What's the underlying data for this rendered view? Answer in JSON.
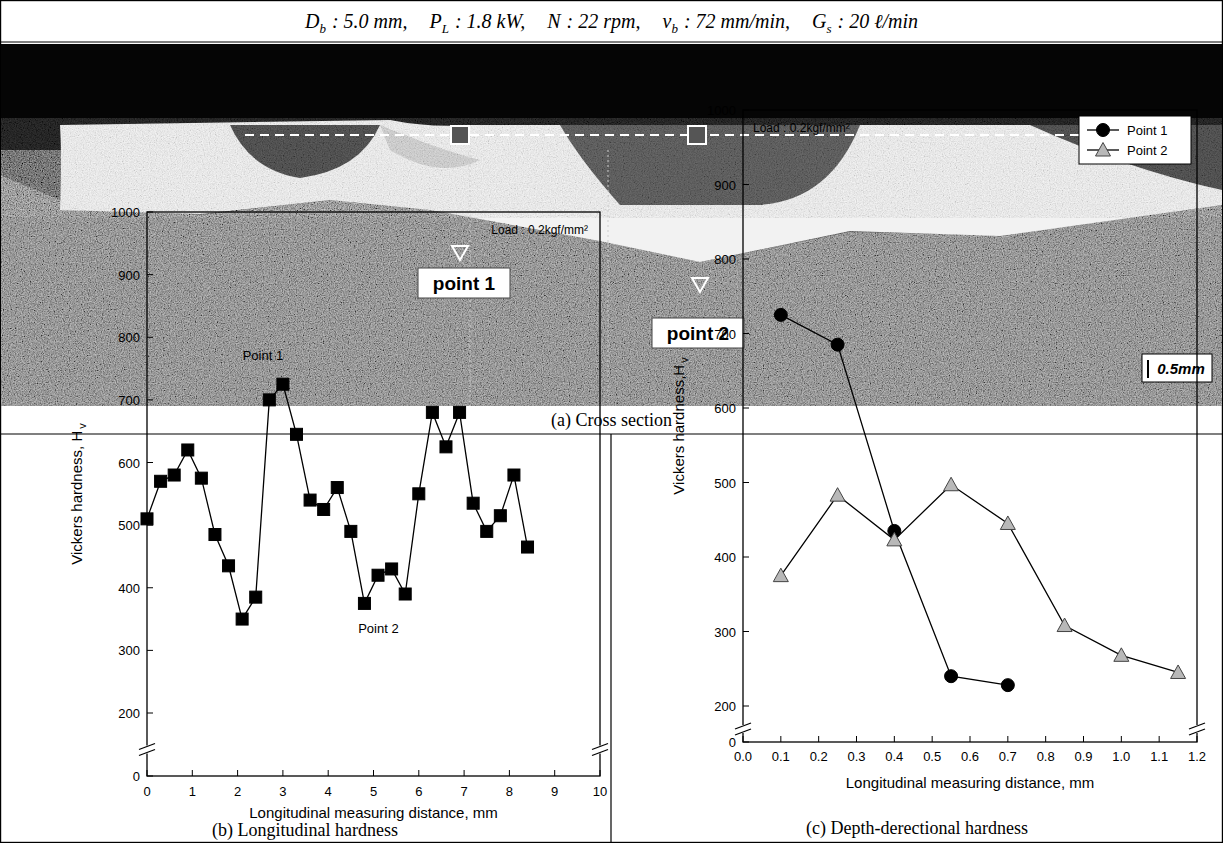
{
  "header": {
    "params": [
      {
        "symbol": "D",
        "sub": "b",
        "value": ": 5.0 mm,"
      },
      {
        "symbol": "P",
        "sub": "L",
        "value": ": 1.8 kW,"
      },
      {
        "symbol": "N",
        "value": ": 22 rpm,"
      },
      {
        "symbol": "v",
        "sub": "b",
        "value": ": 72 mm/min,"
      },
      {
        "symbol": "G",
        "sub": "s",
        "value": ": 20 ℓ/min"
      }
    ]
  },
  "cross_section": {
    "caption": "(a) Cross section",
    "points": [
      "point 1",
      "point 2"
    ],
    "scale_bar": "0.5mm"
  },
  "chart_data": [
    {
      "type": "line",
      "title": "(b) Longitudinal hardness",
      "xlabel": "Longitudinal measuring distance, mm",
      "ylabel": "Vickers hardness, H",
      "ylabel_sub": "v",
      "annotations": [
        "Load : 0.2kgf/mm²",
        "Point 1",
        "Point 2"
      ],
      "x": [
        0,
        0.3,
        0.6,
        0.9,
        1.2,
        1.5,
        1.8,
        2.1,
        2.4,
        2.7,
        3,
        3.3,
        3.6,
        3.9,
        4.2,
        4.5,
        4.8,
        5.1,
        5.4,
        5.7,
        6,
        6.3,
        6.6,
        6.9,
        7.2,
        7.5,
        7.8,
        8.1,
        8.4
      ],
      "values": [
        510,
        570,
        580,
        620,
        575,
        485,
        435,
        350,
        385,
        700,
        725,
        645,
        540,
        525,
        560,
        490,
        375,
        420,
        430,
        390,
        550,
        680,
        625,
        680,
        535,
        490,
        515,
        580,
        465
      ],
      "color": "#000000",
      "marker": "square",
      "line_style": "solid",
      "xlim": [
        0,
        10
      ],
      "xticks": [
        0,
        1,
        2,
        3,
        4,
        5,
        6,
        7,
        8,
        9,
        10
      ],
      "ylim": [
        0,
        1000
      ],
      "yticks": [
        0,
        200,
        300,
        400,
        500,
        600,
        700,
        800,
        900,
        1000
      ],
      "y_break": [
        0,
        200
      ],
      "grid": false
    },
    {
      "type": "line",
      "title": "(c) Depth-derectional hardness",
      "xlabel": "Longitudinal measuring distance, mm",
      "ylabel": "Vickers hardness,H",
      "ylabel_sub": "v",
      "annotations": [
        "Load : 0.2kgf/mm²"
      ],
      "series": [
        {
          "name": "Point 1",
          "color": "#000000",
          "marker": "circle",
          "line_style": "solid",
          "x": [
            0.1,
            0.25,
            0.4,
            0.55,
            0.7
          ],
          "values": [
            725,
            685,
            435,
            240,
            228
          ]
        },
        {
          "name": "Point 2",
          "color": "#b8b8b8",
          "marker": "triangle",
          "line_style": "solid",
          "x": [
            0.1,
            0.25,
            0.4,
            0.55,
            0.7,
            0.85,
            1,
            1.15
          ],
          "values": [
            375,
            483,
            423,
            497,
            445,
            308,
            268,
            245
          ]
        }
      ],
      "xlim": [
        0,
        1.2
      ],
      "xticks": [
        {
          "value": 0,
          "label": "0.0"
        },
        0.1,
        0.2,
        0.3,
        0.4,
        0.5,
        0.6,
        0.7,
        0.8,
        0.9,
        {
          "value": 1,
          "label": "1.0"
        },
        1.1,
        1.2
      ],
      "ylim": [
        0,
        1000
      ],
      "yticks": [
        0,
        200,
        300,
        400,
        500,
        600,
        700,
        800,
        900,
        1000
      ],
      "y_break": [
        0,
        200
      ],
      "legend": "upper right",
      "grid": false
    }
  ]
}
